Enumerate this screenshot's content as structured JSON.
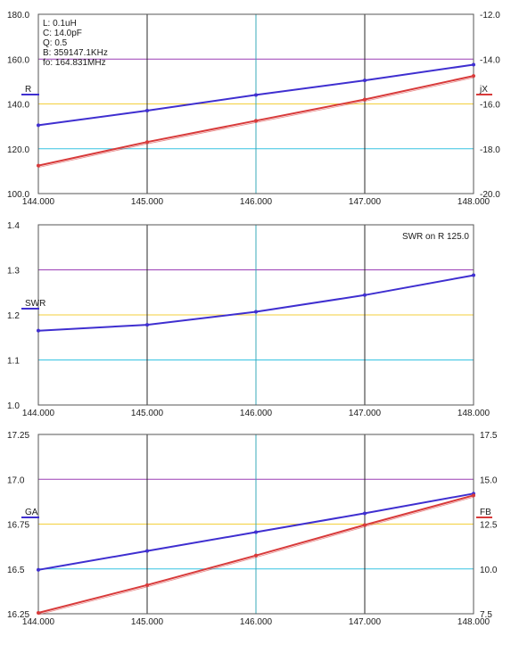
{
  "chart_data": [
    {
      "type": "line",
      "x": [
        144.0,
        145.0,
        146.0,
        147.0,
        148.0
      ],
      "xlim": [
        144.0,
        148.0
      ],
      "x_tick_labels": [
        "144.000",
        "145.000",
        "146.000",
        "147.000",
        "148.000"
      ],
      "y_left": {
        "label": "R",
        "ylim": [
          100.0,
          180.0
        ],
        "tick_values": [
          100,
          120,
          140,
          160,
          180
        ],
        "tick_labels": [
          "100.0",
          "120.0",
          "140.0",
          "160.0",
          "180.0"
        ]
      },
      "y_right": {
        "label": "jX",
        "ylim": [
          -20.0,
          -12.0
        ],
        "tick_values": [
          -20,
          -18,
          -16,
          -14,
          -12
        ],
        "tick_labels": [
          "-20.0",
          "-18.0",
          "-16.0",
          "-14.0",
          "-12.0"
        ]
      },
      "series": [
        {
          "name": "R",
          "axis": "left",
          "color": "#3f2fd0",
          "values": [
            130.5,
            137.0,
            144.0,
            150.5,
            157.5
          ]
        },
        {
          "name": "jX",
          "axis": "right",
          "color": "#d83a3a",
          "values": [
            -18.75,
            -17.7,
            -16.75,
            -15.8,
            -14.75
          ]
        }
      ],
      "annotations": [
        "L: 0.1uH",
        "C: 14.0pF",
        "Q: 0.5",
        "B: 359147.1KHz",
        "fo: 164.831MHz"
      ],
      "grid": true
    },
    {
      "type": "line",
      "x": [
        144.0,
        145.0,
        146.0,
        147.0,
        148.0
      ],
      "xlim": [
        144.0,
        148.0
      ],
      "x_tick_labels": [
        "144.000",
        "145.000",
        "146.000",
        "147.000",
        "148.000"
      ],
      "y_left": {
        "label": "SWR",
        "ylim": [
          1.0,
          1.4
        ],
        "tick_values": [
          1.0,
          1.1,
          1.2,
          1.3,
          1.4
        ],
        "tick_labels": [
          "1.0",
          "1.1",
          "1.2",
          "1.3",
          "1.4"
        ]
      },
      "series": [
        {
          "name": "SWR",
          "axis": "left",
          "color": "#3f2fd0",
          "values": [
            1.165,
            1.178,
            1.207,
            1.244,
            1.288
          ]
        }
      ],
      "annotations": [
        "SWR on R 125.0"
      ],
      "grid": true
    },
    {
      "type": "line",
      "x": [
        144.0,
        145.0,
        146.0,
        147.0,
        148.0
      ],
      "xlim": [
        144.0,
        148.0
      ],
      "x_tick_labels": [
        "144.000",
        "145.000",
        "146.000",
        "147.000",
        "148.000"
      ],
      "y_left": {
        "label": "GA",
        "ylim": [
          16.25,
          17.25
        ],
        "tick_values": [
          16.25,
          16.5,
          16.75,
          17.0,
          17.25
        ],
        "tick_labels": [
          "16.25",
          "16.5",
          "16.75",
          "17.0",
          "17.25"
        ]
      },
      "y_right": {
        "label": "FB",
        "ylim": [
          7.5,
          17.5
        ],
        "tick_values": [
          7.5,
          10.0,
          12.5,
          15.0,
          17.5
        ],
        "tick_labels": [
          "7.5",
          "10.0",
          "12.5",
          "15.0",
          "17.5"
        ]
      },
      "series": [
        {
          "name": "GA",
          "axis": "left",
          "color": "#3f2fd0",
          "values": [
            16.495,
            16.6,
            16.705,
            16.81,
            16.92
          ]
        },
        {
          "name": "FB",
          "axis": "right",
          "color": "#d83a3a",
          "values": [
            7.55,
            9.1,
            10.75,
            12.45,
            14.1
          ]
        }
      ],
      "annotations": [],
      "grid": true
    }
  ]
}
